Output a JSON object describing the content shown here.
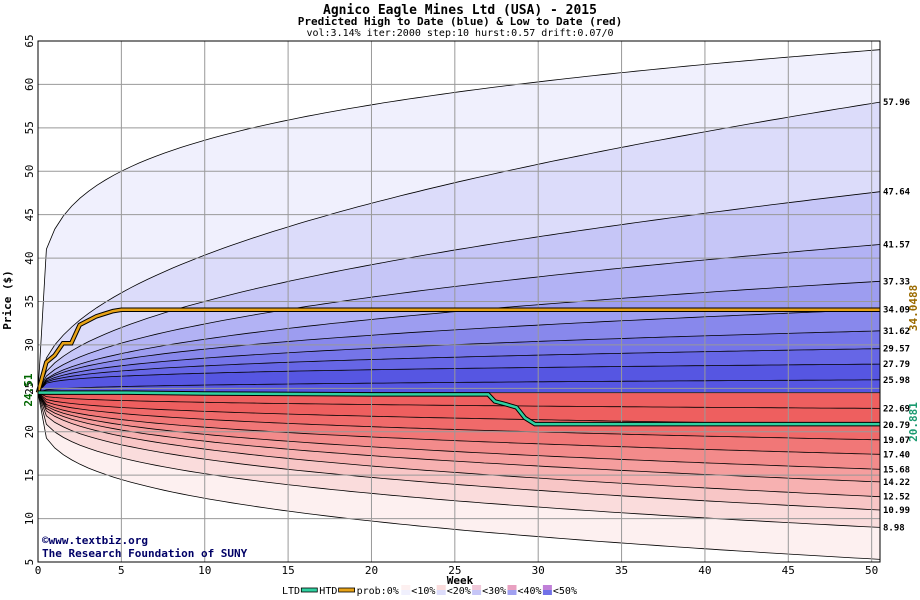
{
  "chart_data": {
    "type": "area",
    "title": "Agnico Eagle Mines Ltd (USA) - 2015",
    "subtitle": "Predicted High to Date (blue) &  Low to Date (red)",
    "params": "vol:3.14% iter:2000 step:10 hurst:0.57 drift:0.07/0",
    "xlabel": "Week",
    "ylabel": "Price ($)",
    "xlim": [
      0,
      50.5
    ],
    "ylim": [
      5,
      65
    ],
    "xticks": [
      0,
      5,
      10,
      15,
      20,
      25,
      30,
      35,
      40,
      45,
      50
    ],
    "yticks": [
      5,
      10,
      15,
      20,
      25,
      30,
      35,
      40,
      45,
      50,
      55,
      60,
      65
    ],
    "start_price": "24.51",
    "high_to_date_value": "34.0488",
    "low_to_date_value": "20.881",
    "right_labels": [
      "57.96",
      "47.64",
      "41.57",
      "37.33",
      "34.09",
      "31.62",
      "29.57",
      "27.79",
      "25.98",
      "22.69",
      "20.79",
      "19.07",
      "17.40",
      "15.68",
      "14.22",
      "12.52",
      "10.99",
      "8.98"
    ],
    "high_bands": [
      {
        "end": 64,
        "wk5": 50
      },
      {
        "end": 57.96,
        "wk5": 36.0
      },
      {
        "end": 47.64,
        "wk5": 32.0
      },
      {
        "end": 41.57,
        "wk5": 30.2
      },
      {
        "end": 37.33,
        "wk5": 29.0
      },
      {
        "end": 34.09,
        "wk5": 28.3
      },
      {
        "end": 31.62,
        "wk5": 27.6
      },
      {
        "end": 29.57,
        "wk5": 27.0
      },
      {
        "end": 27.79,
        "wk5": 26.4
      },
      {
        "end": 25.98,
        "wk5": 25.2
      }
    ],
    "low_bands": [
      {
        "end": 5.3,
        "wk5": 14.5
      },
      {
        "end": 8.98,
        "wk5": 17.0
      },
      {
        "end": 10.99,
        "wk5": 18.5
      },
      {
        "end": 12.52,
        "wk5": 19.5
      },
      {
        "end": 14.22,
        "wk5": 20.2
      },
      {
        "end": 15.68,
        "wk5": 20.8
      },
      {
        "end": 17.4,
        "wk5": 21.4
      },
      {
        "end": 19.07,
        "wk5": 22.1
      },
      {
        "end": 20.79,
        "wk5": 22.8
      },
      {
        "end": 22.69,
        "wk5": 23.6
      }
    ],
    "high_to_date_series": {
      "x": [
        0,
        0.5,
        1,
        1.5,
        2,
        2.5,
        3,
        3.5,
        4,
        4.5,
        5,
        10,
        20,
        30,
        40,
        50.5
      ],
      "y": [
        24.51,
        28.0,
        28.8,
        30.2,
        30.2,
        32.3,
        32.8,
        33.3,
        33.6,
        33.9,
        34.0488,
        34.0488,
        34.0488,
        34.0488,
        34.0488,
        34.0488
      ]
    },
    "low_to_date_series": {
      "x": [
        0,
        5,
        10,
        20,
        27,
        27.4,
        28,
        28.7,
        29.2,
        29.8,
        35,
        40,
        50.5
      ],
      "y": [
        24.51,
        24.51,
        24.4,
        24.3,
        24.3,
        23.5,
        23.2,
        22.8,
        21.6,
        20.881,
        20.881,
        20.881,
        20.881
      ]
    },
    "legend": [
      "LTD",
      "HTD",
      "prob:0%",
      "<10%",
      "<20%",
      "<30%",
      "<40%",
      "<50%"
    ],
    "colors": {
      "high": [
        "#f0f0fd",
        "#dcdcfa",
        "#c6c6f7",
        "#b2b2f4",
        "#9d9df0",
        "#8888ec",
        "#7575e9",
        "#6666e6",
        "#5656e2"
      ],
      "low": [
        "#fdf0f0",
        "#fadcdc",
        "#f8c6c6",
        "#f7b1b1",
        "#f59e9e",
        "#f38b8b",
        "#f17777",
        "#f06a6a",
        "#ee5f5f"
      ],
      "htd": "#e8a317",
      "ltd": "#2fd0a0",
      "frame": "#000000",
      "grid": "#999999"
    },
    "grid": true,
    "legend_placement": "bottom"
  },
  "watermark": {
    "line1": "www.textbiz.org",
    "line2": "The Research Foundation of SUNY",
    "copyright": "©"
  }
}
